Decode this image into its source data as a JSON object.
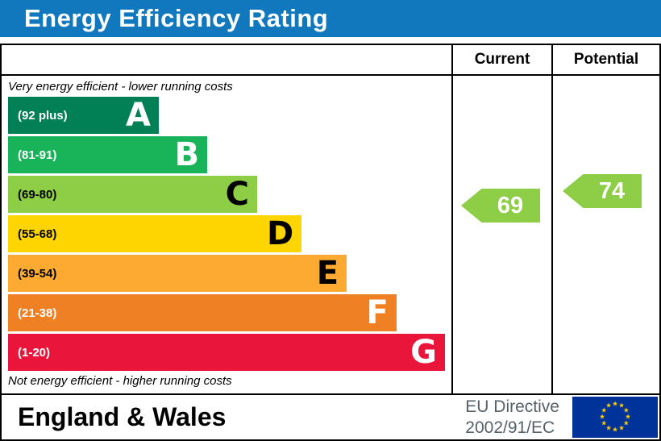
{
  "title": "Energy Efficiency Rating",
  "header": {
    "current_label": "Current",
    "potential_label": "Potential"
  },
  "notes": {
    "top": "Very energy efficient - lower running costs",
    "bottom": "Not energy efficient - higher running costs"
  },
  "chart_data": {
    "type": "bar",
    "title": "Energy Efficiency Rating",
    "bands": [
      {
        "letter": "A",
        "range_label": "(92 plus)",
        "range": [
          92,
          100
        ],
        "color": "#008054",
        "text_color": "#ffffff",
        "bar_width_pct": 34.5
      },
      {
        "letter": "B",
        "range_label": "(81-91)",
        "range": [
          81,
          91
        ],
        "color": "#19b459",
        "text_color": "#ffffff",
        "bar_width_pct": 45.6
      },
      {
        "letter": "C",
        "range_label": "(69-80)",
        "range": [
          69,
          80
        ],
        "color": "#8dce46",
        "text_color": "#000000",
        "bar_width_pct": 57.0
      },
      {
        "letter": "D",
        "range_label": "(55-68)",
        "range": [
          55,
          68
        ],
        "color": "#ffd500",
        "text_color": "#000000",
        "bar_width_pct": 67.2
      },
      {
        "letter": "E",
        "range_label": "(39-54)",
        "range": [
          39,
          54
        ],
        "color": "#fcaa31",
        "text_color": "#000000",
        "bar_width_pct": 77.5
      },
      {
        "letter": "F",
        "range_label": "(21-38)",
        "range": [
          21,
          38
        ],
        "color": "#ef8023",
        "text_color": "#ffffff",
        "bar_width_pct": 88.9
      },
      {
        "letter": "G",
        "range_label": "(1-20)",
        "range": [
          1,
          20
        ],
        "color": "#e9153b",
        "text_color": "#ffffff",
        "bar_width_pct": 100
      }
    ],
    "current": {
      "value": 69,
      "band": "C",
      "color": "#8dce46"
    },
    "potential": {
      "value": 74,
      "band": "C",
      "color": "#8dce46"
    },
    "legend_position": "none",
    "grid": false
  },
  "footer": {
    "region": "England & Wales",
    "directive_line1": "EU Directive",
    "directive_line2": "2002/91/EC",
    "eu_flag": {
      "background": "#003399",
      "star_color": "#ffcc00",
      "star_count": 12
    }
  },
  "colors": {
    "title_bar": "#1278be",
    "border": "#000000"
  }
}
